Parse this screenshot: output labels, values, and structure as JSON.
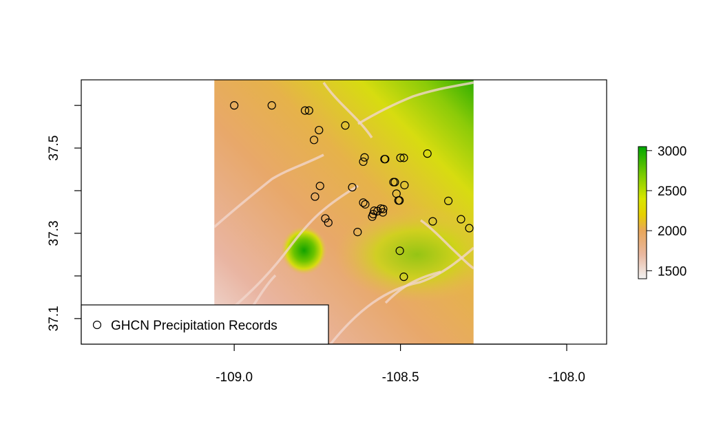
{
  "chart_data": {
    "type": "scatter",
    "title": "",
    "xlabel": "",
    "ylabel": "",
    "xlim": [
      -109.46,
      -107.88
    ],
    "ylim": [
      37.04,
      37.66
    ],
    "x_ticks": [
      -109.0,
      -108.5,
      -108.0
    ],
    "x_tick_labels": [
      "-109.0",
      "-108.5",
      "-108.0"
    ],
    "y_ticks": [
      37.1,
      37.2,
      37.3,
      37.4,
      37.5,
      37.6
    ],
    "y_tick_labels": [
      "37.1",
      "",
      "37.3",
      "",
      "37.5",
      ""
    ],
    "raster": {
      "extent_x": [
        -109.06,
        -108.28
      ],
      "extent_y": [
        37.04,
        37.66
      ],
      "color_scale": {
        "min": 1400,
        "max": 3050,
        "ticks": [
          1500,
          2000,
          2500,
          3000
        ],
        "tick_labels": [
          "1500",
          "2000",
          "2500",
          "3000"
        ],
        "stops": [
          {
            "value": 1400,
            "color": "#F2F2F2"
          },
          {
            "value": 1700,
            "color": "#E9B8A0"
          },
          {
            "value": 2000,
            "color": "#E8A65A"
          },
          {
            "value": 2200,
            "color": "#E6D000"
          },
          {
            "value": 2400,
            "color": "#D8E600"
          },
          {
            "value": 2700,
            "color": "#7ACB00"
          },
          {
            "value": 3050,
            "color": "#00A600"
          }
        ]
      }
    },
    "series": [
      {
        "name": "GHCN Precipitation Records",
        "marker": "open-circle",
        "x": [
          -109.0,
          -108.887,
          -108.787,
          -108.775,
          -108.745,
          -108.76,
          -108.666,
          -108.608,
          -108.612,
          -108.546,
          -108.548,
          -108.5,
          -108.49,
          -108.419,
          -108.521,
          -108.517,
          -108.488,
          -108.645,
          -108.742,
          -108.757,
          -108.612,
          -108.606,
          -108.579,
          -108.569,
          -108.559,
          -108.552,
          -108.553,
          -108.585,
          -108.582,
          -108.512,
          -108.506,
          -108.503,
          -108.726,
          -108.717,
          -108.629,
          -108.356,
          -108.403,
          -108.318,
          -108.293,
          -108.502,
          -108.49
        ],
        "y": [
          37.6,
          37.6,
          37.588,
          37.588,
          37.542,
          37.519,
          37.553,
          37.478,
          37.468,
          37.474,
          37.474,
          37.477,
          37.477,
          37.487,
          37.42,
          37.42,
          37.413,
          37.408,
          37.411,
          37.386,
          37.372,
          37.368,
          37.353,
          37.352,
          37.358,
          37.357,
          37.349,
          37.339,
          37.345,
          37.393,
          37.377,
          37.377,
          37.335,
          37.325,
          37.303,
          37.376,
          37.328,
          37.333,
          37.312,
          37.259,
          37.198
        ]
      }
    ],
    "legend": {
      "position": "bottom-left",
      "entries": [
        "GHCN Precipitation Records"
      ]
    },
    "grid": false,
    "colors": {
      "axis": "#000000",
      "background": "#FFFFFF",
      "marker_stroke": "#000000"
    }
  }
}
